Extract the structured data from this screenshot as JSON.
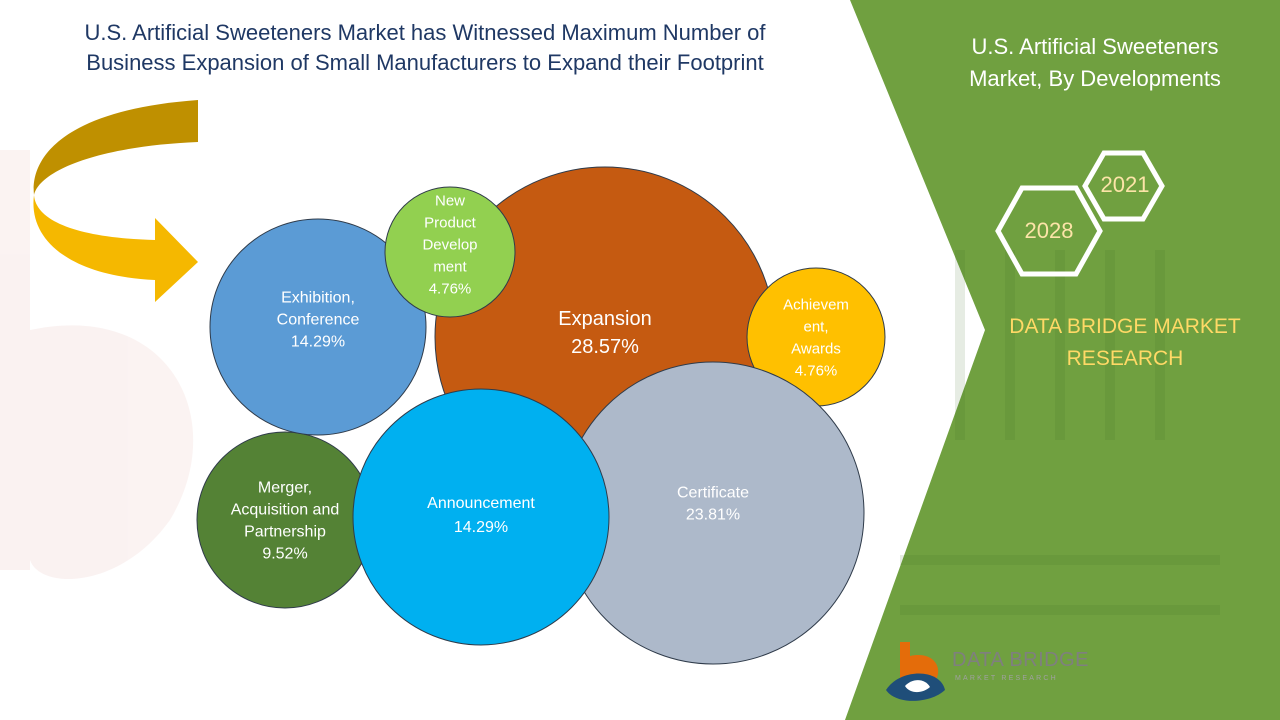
{
  "title_lines": [
    "U.S. Artificial Sweeteners Market has Witnessed Maximum Number of",
    "Business Expansion of Small Manufacturers to Expand their Footprint"
  ],
  "sidebar": {
    "title_lines": [
      "U.S. Artificial Sweeteners",
      "Market, By Developments"
    ],
    "year_start": "2021",
    "year_end": "2028",
    "brand_lines": [
      "DATA BRIDGE MARKET",
      "RESEARCH"
    ],
    "logo_text": "DATA BRIDGE",
    "logo_sub": "MARKET RESEARCH"
  },
  "colors": {
    "green_panel": "#70a040",
    "title_blue": "#1f3864",
    "brand_yellow": "#ffd966",
    "arrow_gold": "#f5b800"
  },
  "chart_data": {
    "type": "bubble",
    "unit": "%",
    "series": [
      {
        "label_lines": [
          "Merger,",
          "Acquisition and",
          "Partnership"
        ],
        "value_text": "9.52%",
        "value": 9.52,
        "color": "#548235"
      },
      {
        "label_lines": [
          "Exhibition,",
          "Conference"
        ],
        "value_text": "14.29%",
        "value": 14.29,
        "color": "#5b9bd5"
      },
      {
        "label_lines": [
          "Expansion"
        ],
        "value_text": "28.57%",
        "value": 28.57,
        "color": "#c55a11"
      },
      {
        "label_lines": [
          "New",
          "Product",
          "Develop",
          "ment"
        ],
        "value_text": "4.76%",
        "value": 4.76,
        "color": "#92d050"
      },
      {
        "label_lines": [
          "Achievem",
          "ent,",
          "Awards"
        ],
        "value_text": "4.76%",
        "value": 4.76,
        "color": "#ffc000"
      },
      {
        "label_lines": [
          "Certificate"
        ],
        "value_text": "23.81%",
        "value": 23.81,
        "color": "#adb9ca"
      },
      {
        "label_lines": [
          "Announcement"
        ],
        "value_text": "14.29%",
        "value": 14.29,
        "color": "#00b0f0"
      }
    ]
  }
}
